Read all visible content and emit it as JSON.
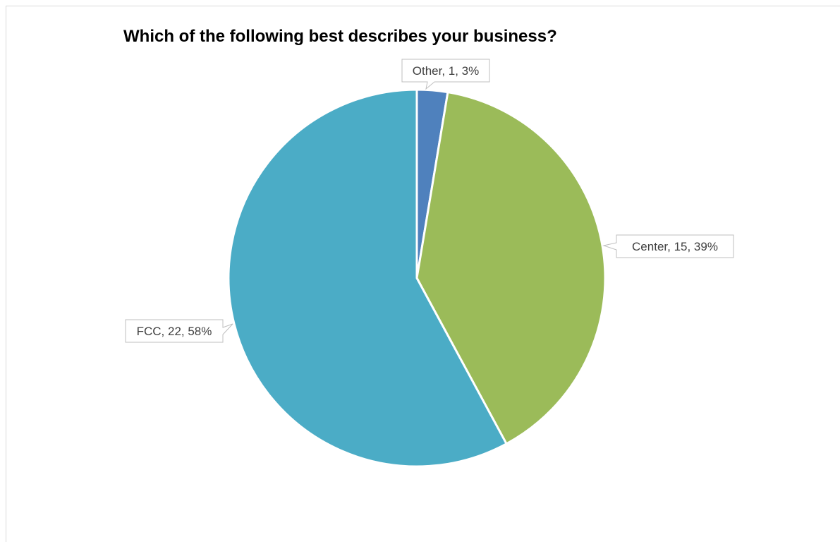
{
  "chart_data": {
    "type": "pie",
    "title": "Which of the following best describes your business?",
    "slices": [
      {
        "label": "Other",
        "value": 1,
        "percent": 3,
        "color": "#4f81bd",
        "data_label": "Other, 1, 3%"
      },
      {
        "label": "Center",
        "value": 15,
        "percent": 39,
        "color": "#9bbb59",
        "data_label": "Center, 15, 39%"
      },
      {
        "label": "FCC",
        "value": 22,
        "percent": 58,
        "color": "#4bacc6",
        "data_label": "FCC, 22, 58%"
      }
    ],
    "legend": "none",
    "data_labels": "callouts"
  }
}
